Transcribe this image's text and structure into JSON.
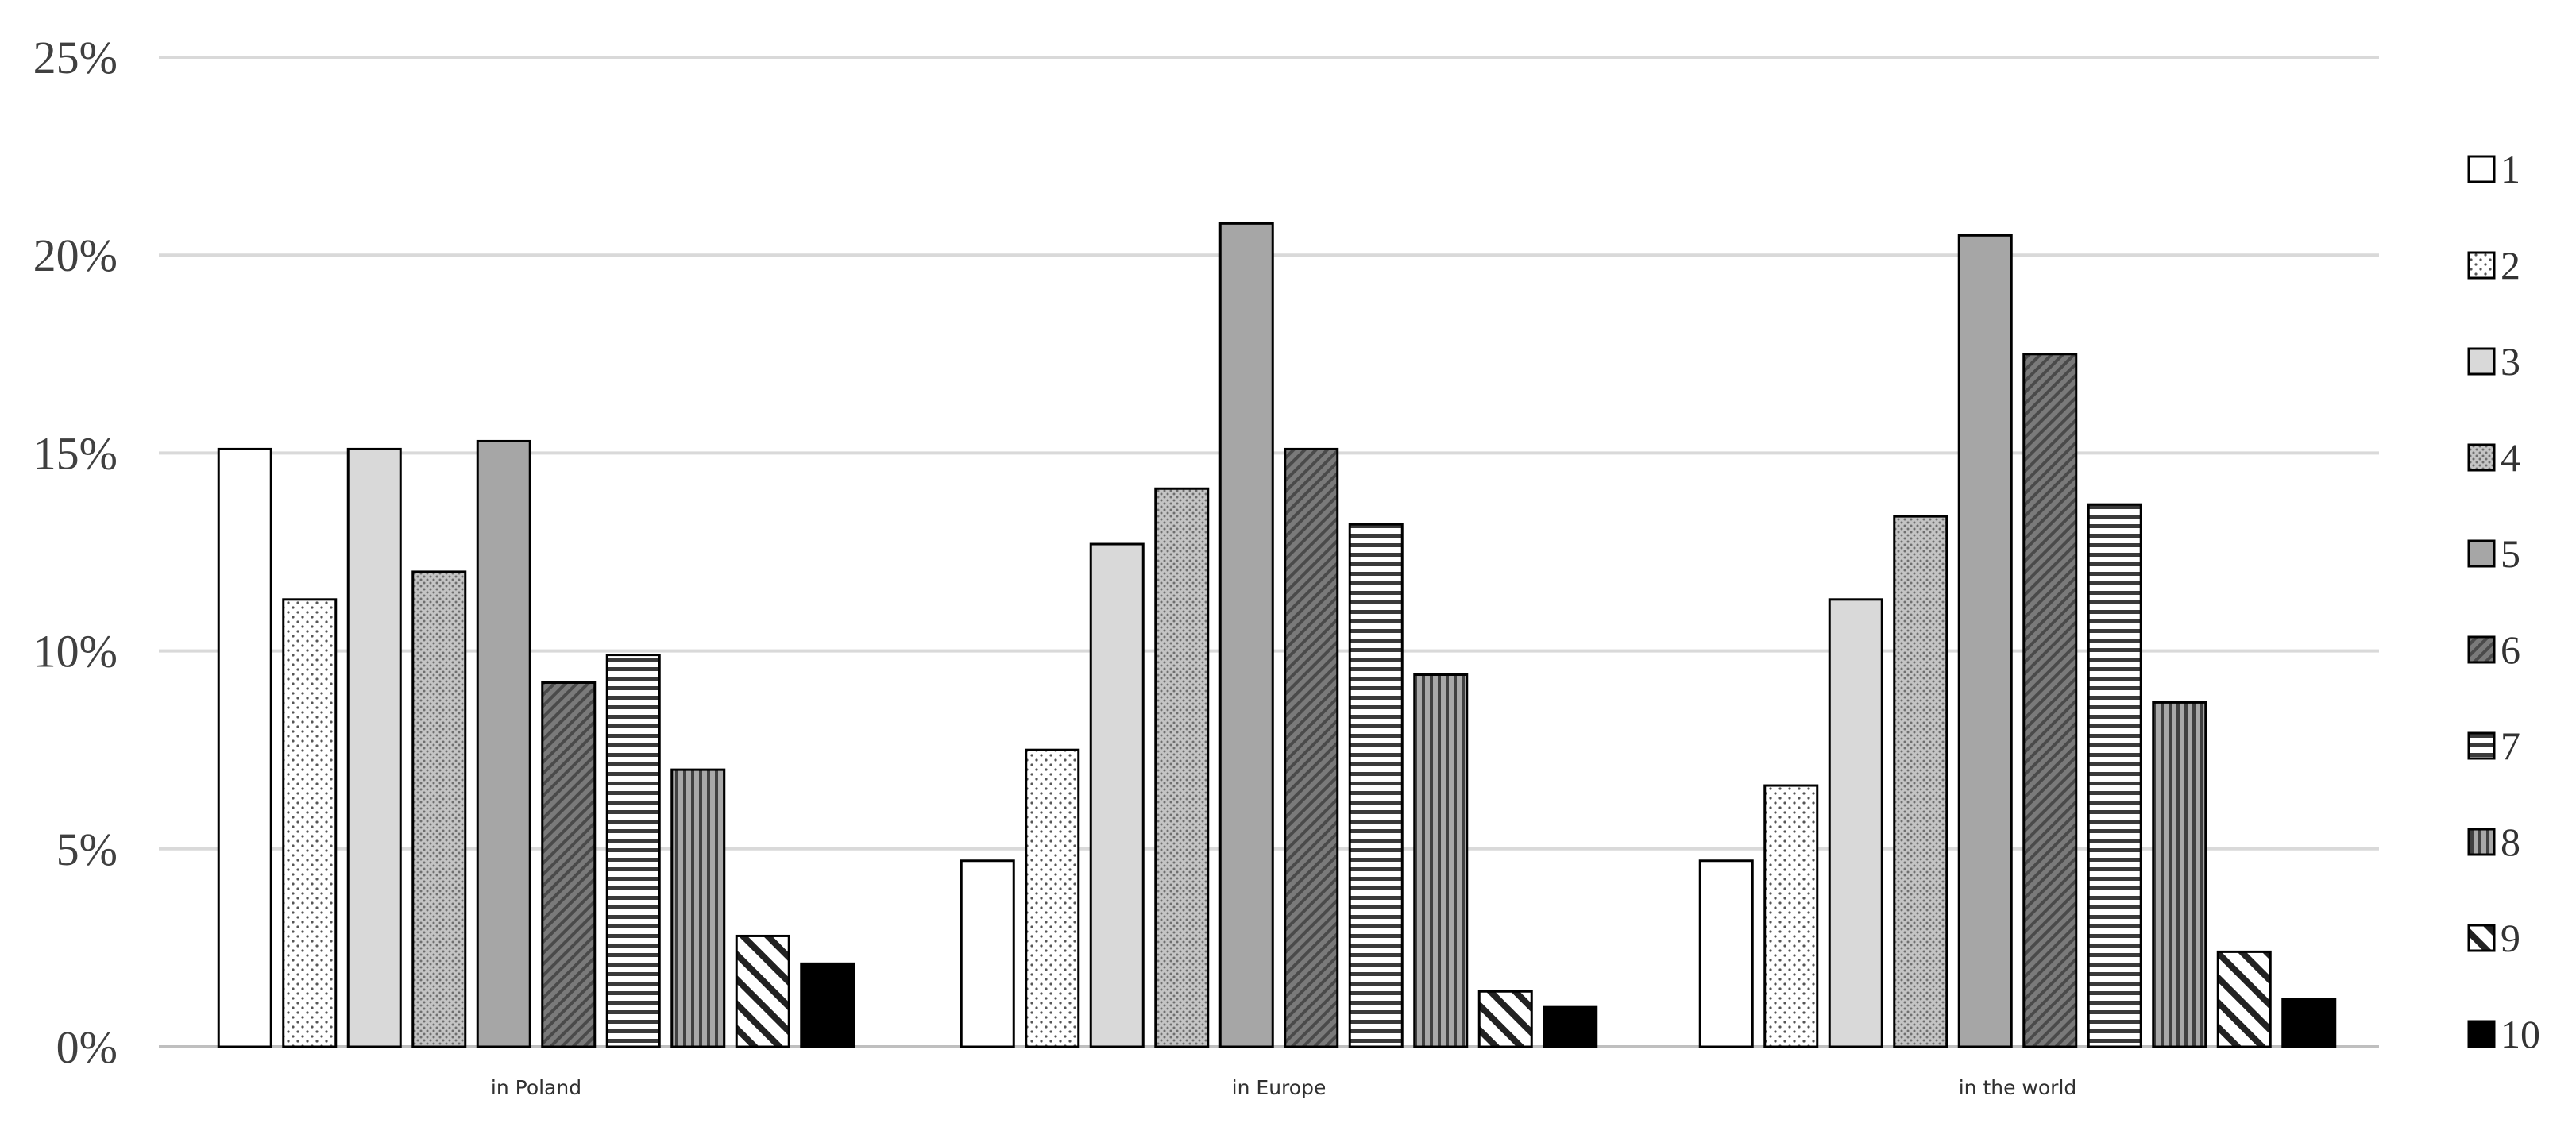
{
  "chart_data": {
    "type": "bar",
    "title": "",
    "xlabel": "",
    "ylabel": "",
    "ylim": [
      0,
      25
    ],
    "yticks": [
      0,
      5,
      10,
      15,
      20,
      25
    ],
    "ytick_format": "%",
    "grid": true,
    "legend_position": "right",
    "categories": [
      "in Poland",
      "in Europe",
      "in the world"
    ],
    "series": [
      {
        "name": "1",
        "pattern": "white",
        "values": [
          15.1,
          4.7,
          4.7
        ]
      },
      {
        "name": "2",
        "pattern": "dots-sparse",
        "values": [
          11.3,
          7.5,
          6.6
        ]
      },
      {
        "name": "3",
        "pattern": "light-gray",
        "values": [
          15.1,
          12.7,
          11.3
        ]
      },
      {
        "name": "4",
        "pattern": "dots-dense",
        "values": [
          12.0,
          14.1,
          13.4
        ]
      },
      {
        "name": "5",
        "pattern": "mid-gray",
        "values": [
          15.3,
          20.8,
          20.5
        ]
      },
      {
        "name": "6",
        "pattern": "diagonal-dark",
        "values": [
          9.2,
          15.1,
          17.5
        ]
      },
      {
        "name": "7",
        "pattern": "horizontal",
        "values": [
          9.9,
          13.2,
          13.7
        ]
      },
      {
        "name": "8",
        "pattern": "vertical",
        "values": [
          7.0,
          9.4,
          8.7
        ]
      },
      {
        "name": "9",
        "pattern": "diagonal-wide",
        "values": [
          2.8,
          1.4,
          2.4
        ]
      },
      {
        "name": "10",
        "pattern": "black",
        "values": [
          2.1,
          1.0,
          1.2
        ]
      }
    ]
  }
}
